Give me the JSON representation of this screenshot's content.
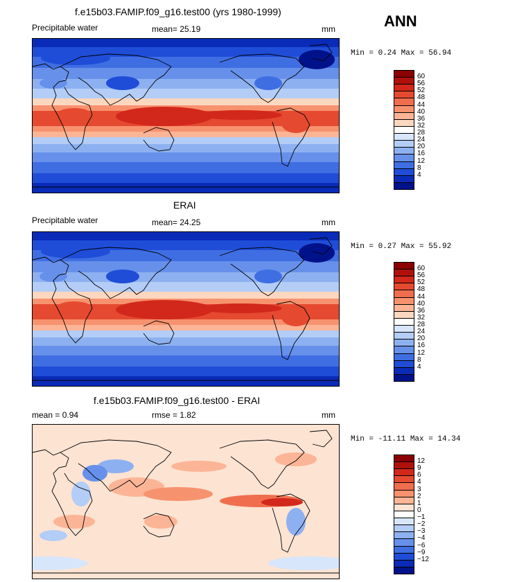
{
  "season": "ANN",
  "panels": [
    {
      "title": "f.e15b03.FAMIP.f09_g16.test00 (yrs 1980-1999)",
      "left_label": "Precipitable water",
      "stat": "mean=    25.19",
      "units": "mm",
      "minmax": "Min =    0.24  Max =   56.94",
      "colorbar": {
        "labels": [
          "60",
          "56",
          "52",
          "48",
          "44",
          "40",
          "36",
          "32",
          "28",
          "24",
          "20",
          "16",
          "12",
          "8",
          "4"
        ],
        "colors": [
          "#8b0000",
          "#b0100a",
          "#d2281c",
          "#e54a30",
          "#f06e4e",
          "#f7926f",
          "#fbb596",
          "#fcd7bf",
          "#ffffff",
          "#d7e6fb",
          "#b3cdf6",
          "#8db1f0",
          "#6690ea",
          "#3f6ee3",
          "#1f4dd8",
          "#0a2bb8",
          "#00128a"
        ]
      },
      "map_kind": "pw"
    },
    {
      "title": "ERAI",
      "left_label": "Precipitable water",
      "stat": "mean=    24.25",
      "units": "mm",
      "minmax": "Min =    0.27  Max =   55.92",
      "colorbar": {
        "labels": [
          "60",
          "56",
          "52",
          "48",
          "44",
          "40",
          "36",
          "32",
          "28",
          "24",
          "20",
          "16",
          "12",
          "8",
          "4"
        ],
        "colors": [
          "#8b0000",
          "#b0100a",
          "#d2281c",
          "#e54a30",
          "#f06e4e",
          "#f7926f",
          "#fbb596",
          "#fcd7bf",
          "#ffffff",
          "#d7e6fb",
          "#b3cdf6",
          "#8db1f0",
          "#6690ea",
          "#3f6ee3",
          "#1f4dd8",
          "#0a2bb8",
          "#00128a"
        ]
      },
      "map_kind": "pw"
    },
    {
      "title": "f.e15b03.FAMIP.f09_g16.test00 - ERAI",
      "left_label": "mean =    0.94",
      "stat": "rmse =    1.82",
      "units": "mm",
      "minmax": "Min =  -11.11  Max =   14.34",
      "colorbar": {
        "labels": [
          "12",
          "9",
          "6",
          "4",
          "3",
          "2",
          "1",
          "0",
          "−1",
          "−2",
          "−3",
          "−4",
          "−6",
          "−9",
          "−12"
        ],
        "colors": [
          "#8b0000",
          "#b0100a",
          "#d2281c",
          "#e54a30",
          "#f06e4e",
          "#f7926f",
          "#fbb596",
          "#fde3d2",
          "#ffffff",
          "#d7e6fb",
          "#b3cdf6",
          "#8db1f0",
          "#6690ea",
          "#3f6ee3",
          "#1f4dd8",
          "#0a2bb8",
          "#00128a"
        ]
      },
      "map_kind": "diff"
    }
  ]
}
